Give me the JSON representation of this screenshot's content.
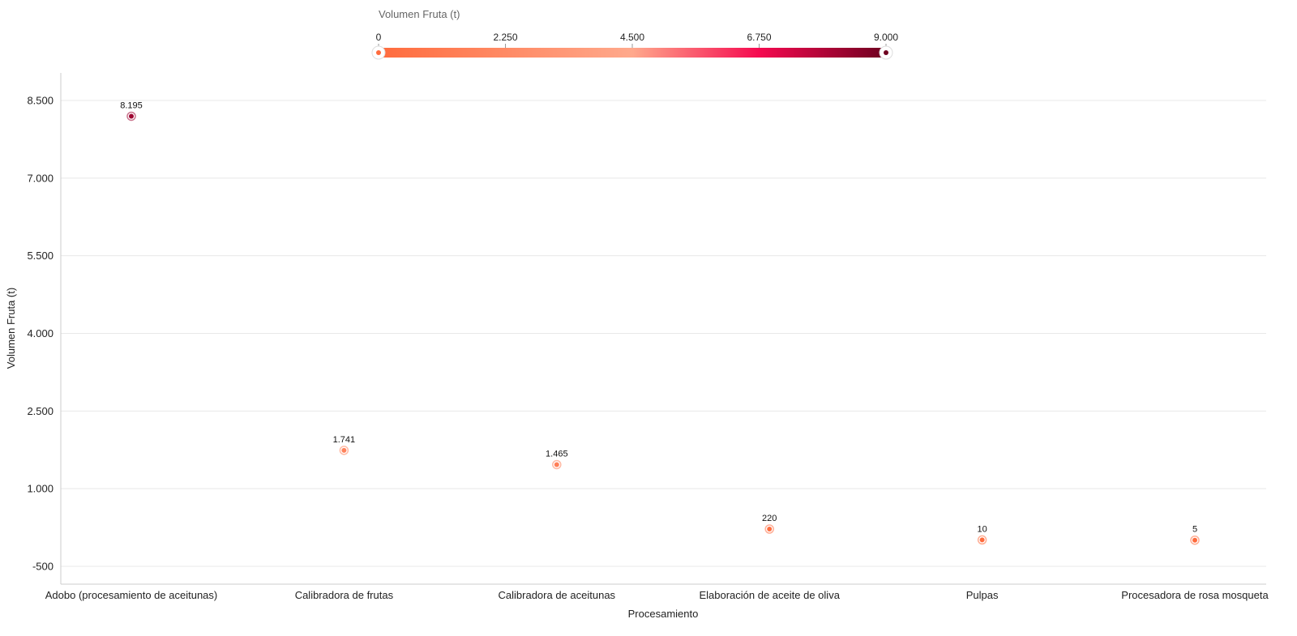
{
  "chart_data": {
    "type": "scatter",
    "xlabel": "Procesamiento",
    "ylabel": "Volumen Fruta (t)",
    "categories": [
      "Adobo (procesamiento de aceitunas)",
      "Calibradora de frutas",
      "Calibradora de aceitunas",
      "Elaboración de aceite de oliva",
      "Pulpas",
      "Procesadora de rosa mosqueta"
    ],
    "values": [
      8195,
      1741,
      1465,
      220,
      10,
      5
    ],
    "data_labels": [
      "8.195",
      "1.741",
      "1.465",
      "220",
      "10",
      "5"
    ],
    "ylim": [
      -500,
      9000
    ],
    "y_ticks": [
      -500,
      1000,
      2500,
      4000,
      5500,
      7000,
      8500
    ],
    "y_tick_labels": [
      "-500",
      "1.000",
      "2.500",
      "4.000",
      "5.500",
      "7.000",
      "8.500"
    ],
    "grid": true,
    "legend": {
      "title": "Volumen Fruta (t)",
      "placement": "top",
      "min": 0,
      "max": 9000,
      "ticks": [
        0,
        2250,
        4500,
        6750,
        9000
      ],
      "tick_labels": [
        "0",
        "2.250",
        "4.500",
        "6.750",
        "9.000"
      ],
      "colors": [
        "#ff6b3d",
        "#ffa98c",
        "#f50a50",
        "#6e0020"
      ]
    }
  }
}
